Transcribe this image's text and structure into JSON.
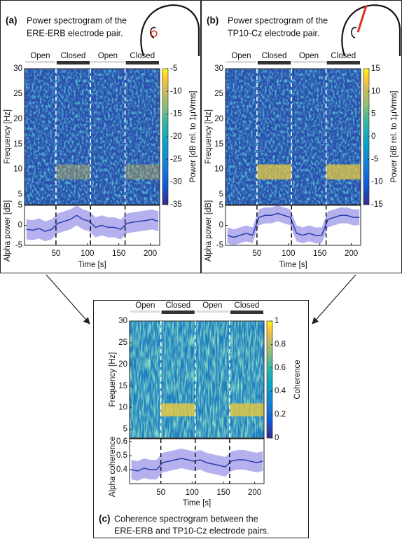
{
  "chart_data": [
    {
      "type": "spectrogram",
      "label": "(a)",
      "caption_lines": [
        "Power spectrogram of the",
        "ERE-ERB electrode pair."
      ],
      "conditions": [
        {
          "label": "Open",
          "start": 0,
          "end": 50
        },
        {
          "label": "Closed",
          "start": 50,
          "end": 105
        },
        {
          "label": "Open",
          "start": 105,
          "end": 160
        },
        {
          "label": "Closed",
          "start": 160,
          "end": 215
        }
      ],
      "xlim": [
        0,
        215
      ],
      "xticks": [
        50,
        100,
        150,
        200
      ],
      "xlabel": "Time [s]",
      "spectrogram": {
        "ylabel": "Frequency [Hz]",
        "ylim": [
          3,
          30
        ],
        "yticks": [
          5,
          10,
          15,
          20,
          25,
          30
        ]
      },
      "colorbar": {
        "label": "Power [dB rel. to 1μVrms]",
        "lim": [
          -35,
          -5
        ],
        "ticks": [
          -35,
          -30,
          -25,
          -20,
          -15,
          -10,
          -5
        ]
      },
      "alpha": {
        "ylabel": "Alpha power [dB]",
        "ylim": [
          -5,
          5
        ],
        "yticks": [
          -5,
          0,
          5
        ],
        "x": [
          3,
          13,
          23,
          33,
          43,
          53,
          63,
          73,
          83,
          93,
          103,
          113,
          123,
          133,
          143,
          153,
          163,
          173,
          183,
          193,
          203,
          213
        ],
        "values": [
          -1,
          -1.2,
          -0.8,
          -1.5,
          -1,
          0.5,
          1,
          1.5,
          2.5,
          1.5,
          1,
          -0.5,
          0,
          -0.5,
          -0.5,
          -1,
          0.5,
          0.8,
          1,
          1.2,
          1.5,
          1
        ],
        "lower": [
          -3.5,
          -3.7,
          -3.3,
          -4,
          -3.5,
          -2,
          -1.5,
          -1,
          0,
          -1,
          -1.5,
          -3,
          -2.5,
          -3,
          -3,
          -3.5,
          -2,
          -1.7,
          -1.5,
          -1.3,
          -1,
          -1.5
        ],
        "upper": [
          1.5,
          1.3,
          1.7,
          1,
          1.5,
          3,
          3.5,
          4,
          5,
          4,
          3.5,
          2,
          2.5,
          2,
          2,
          1.5,
          3,
          3.3,
          3.5,
          3.7,
          4,
          3.5
        ]
      }
    },
    {
      "type": "spectrogram",
      "label": "(b)",
      "caption_lines": [
        "Power spectrogram of the",
        "TP10-Cz electrode pair."
      ],
      "conditions": [
        {
          "label": "Open",
          "start": 0,
          "end": 50
        },
        {
          "label": "Closed",
          "start": 50,
          "end": 105
        },
        {
          "label": "Open",
          "start": 105,
          "end": 160
        },
        {
          "label": "Closed",
          "start": 160,
          "end": 215
        }
      ],
      "xlim": [
        0,
        215
      ],
      "xticks": [
        50,
        100,
        150,
        200
      ],
      "xlabel": "Time [s]",
      "spectrogram": {
        "ylabel": "Frequency [Hz]",
        "ylim": [
          3,
          30
        ],
        "yticks": [
          5,
          10,
          15,
          20,
          25,
          30
        ]
      },
      "colorbar": {
        "label": "Power [dB rel. to 1μVrms]",
        "lim": [
          -15,
          15
        ],
        "ticks": [
          -15,
          -10,
          -5,
          0,
          5,
          10,
          15
        ]
      },
      "alpha": {
        "ylabel": "Alpha power [dB]",
        "ylim": [
          -5,
          5
        ],
        "yticks": [
          -5,
          0,
          5
        ],
        "x": [
          3,
          13,
          23,
          33,
          43,
          53,
          63,
          73,
          83,
          93,
          103,
          113,
          123,
          133,
          143,
          153,
          163,
          173,
          183,
          193,
          203,
          213
        ],
        "values": [
          -2.5,
          -3,
          -2.5,
          -2,
          -2.5,
          2,
          2.5,
          2.5,
          3,
          2.5,
          2,
          -2,
          -2.5,
          -2,
          -2.5,
          -2.5,
          1.5,
          2,
          2.5,
          2.5,
          2,
          2
        ],
        "lower": [
          -4.5,
          -5,
          -4.5,
          -4,
          -4.5,
          0,
          0.5,
          0.5,
          1,
          0.5,
          0,
          -4,
          -4.5,
          -4,
          -4.5,
          -4.5,
          -0.5,
          0,
          0.5,
          0.5,
          0,
          0
        ],
        "upper": [
          -0.5,
          -1,
          -0.5,
          0,
          -0.5,
          4,
          4.5,
          4.5,
          5,
          4.5,
          4,
          0,
          -0.5,
          0,
          -0.5,
          -0.5,
          3.5,
          4,
          4.5,
          4.5,
          4,
          4
        ]
      }
    },
    {
      "type": "spectrogram",
      "label": "(c)",
      "caption_lines": [
        "Coherence spectrogram between the",
        "ERE-ERB and TP10-Cz electrode pairs."
      ],
      "conditions": [
        {
          "label": "Open",
          "start": 0,
          "end": 50
        },
        {
          "label": "Closed",
          "start": 50,
          "end": 105
        },
        {
          "label": "Open",
          "start": 105,
          "end": 160
        },
        {
          "label": "Closed",
          "start": 160,
          "end": 215
        }
      ],
      "xlim": [
        0,
        215
      ],
      "xticks": [
        50,
        100,
        150,
        200
      ],
      "xlabel": "Time [s]",
      "spectrogram": {
        "ylabel": "Frequency [Hz]",
        "ylim": [
          3,
          30
        ],
        "yticks": [
          5,
          10,
          15,
          20,
          25,
          30
        ]
      },
      "colorbar": {
        "label": "Coherence",
        "lim": [
          0,
          1
        ],
        "ticks": [
          0,
          0.2,
          0.4,
          0.6,
          0.8,
          1
        ]
      },
      "alpha": {
        "ylabel": "Alpha coherence",
        "ylim": [
          0.3,
          0.62
        ],
        "yticks": [
          0.4,
          0.5,
          0.6
        ],
        "x": [
          3,
          13,
          23,
          33,
          43,
          53,
          63,
          73,
          83,
          93,
          103,
          113,
          123,
          133,
          143,
          153,
          163,
          173,
          183,
          193,
          203,
          213
        ],
        "values": [
          0.4,
          0.39,
          0.41,
          0.4,
          0.4,
          0.45,
          0.46,
          0.47,
          0.48,
          0.47,
          0.46,
          0.47,
          0.45,
          0.44,
          0.43,
          0.42,
          0.46,
          0.47,
          0.47,
          0.46,
          0.45,
          0.46
        ],
        "lower": [
          0.33,
          0.32,
          0.34,
          0.33,
          0.33,
          0.38,
          0.39,
          0.4,
          0.41,
          0.4,
          0.39,
          0.4,
          0.38,
          0.37,
          0.36,
          0.35,
          0.39,
          0.4,
          0.4,
          0.39,
          0.38,
          0.39
        ],
        "upper": [
          0.47,
          0.46,
          0.48,
          0.47,
          0.47,
          0.52,
          0.53,
          0.54,
          0.55,
          0.54,
          0.53,
          0.54,
          0.52,
          0.51,
          0.5,
          0.49,
          0.53,
          0.54,
          0.54,
          0.53,
          0.52,
          0.53
        ]
      }
    }
  ]
}
